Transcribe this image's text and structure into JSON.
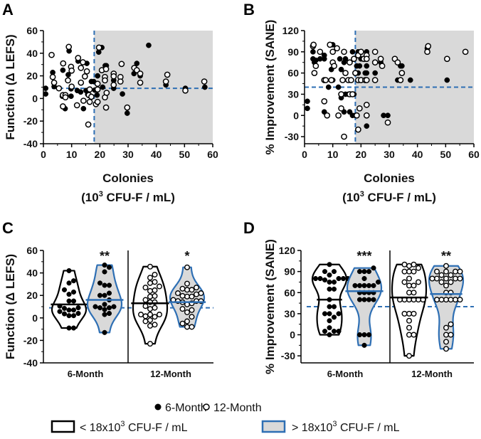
{
  "colors": {
    "shade": "#d9d9d9",
    "blue": "#2e6fb4",
    "black": "#000000"
  },
  "legend": {
    "six_month": "6-Month",
    "twelve_month": "12-Month",
    "below": "< 18x10",
    "above": "> 18x10",
    "sup": "3",
    "unit": " CFU-F / mL"
  },
  "chart_data": [
    {
      "panel": "A",
      "type": "scatter",
      "ylabel": "Function (Δ LEFS)",
      "xlabel": "Colonies",
      "xlabel2": "(10",
      "xlabel_sup": "3",
      "xlabel3": " CFU-F / mL)",
      "xlim": [
        0,
        60
      ],
      "ylim": [
        -40,
        60
      ],
      "xticks": [
        "0",
        "10",
        "20",
        "30",
        "40",
        "50",
        "60"
      ],
      "yticks": [
        "-40",
        "-20",
        "0",
        "20",
        "40",
        "60"
      ],
      "threshold_x": 18,
      "threshold_y": 9,
      "shaded": "x > 18",
      "series": [
        {
          "name": "6-Month",
          "points": [
            [
              0.8,
              9
            ],
            [
              0.8,
              4
            ],
            [
              3.3,
              23
            ],
            [
              3.8,
              10.5
            ],
            [
              6.9,
              25
            ],
            [
              8.8,
              21
            ],
            [
              9.1,
              42
            ],
            [
              9.8,
              2
            ],
            [
              9.8,
              8.5
            ],
            [
              12.3,
              33
            ],
            [
              15.4,
              31
            ],
            [
              12,
              7
            ],
            [
              13.2,
              5.7
            ],
            [
              14.2,
              -9
            ],
            [
              15.1,
              7
            ],
            [
              15.7,
              3.6
            ],
            [
              17,
              15
            ],
            [
              17.8,
              15
            ],
            [
              7.7,
              -9
            ],
            [
              6.7,
              2
            ],
            [
              19.6,
              41
            ],
            [
              20.7,
              45
            ],
            [
              19.2,
              20
            ],
            [
              19,
              3
            ],
            [
              21,
              10
            ],
            [
              21.9,
              29
            ],
            [
              22.3,
              29
            ],
            [
              24.9,
              16
            ],
            [
              24.9,
              9
            ],
            [
              28,
              4
            ],
            [
              29.7,
              -13
            ],
            [
              33.1,
              31
            ],
            [
              32.1,
              22
            ],
            [
              34.3,
              20
            ],
            [
              37.3,
              47
            ],
            [
              43.4,
              12
            ],
            [
              50.3,
              9
            ],
            [
              57.2,
              10
            ],
            [
              18.2,
              7.4
            ]
          ]
        },
        {
          "name": "12-Month",
          "points": [
            [
              2.9,
              38.5
            ],
            [
              3.3,
              19
            ],
            [
              3.8,
              14
            ],
            [
              5.5,
              9
            ],
            [
              7,
              31
            ],
            [
              6.9,
              3
            ],
            [
              6.9,
              -7
            ],
            [
              7.8,
              3
            ],
            [
              7.8,
              1
            ],
            [
              9,
              45.6
            ],
            [
              8.7,
              16
            ],
            [
              9.8,
              28
            ],
            [
              10,
              24.6
            ],
            [
              10,
              10.5
            ],
            [
              12.3,
              35.8
            ],
            [
              11.9,
              -6
            ],
            [
              13.3,
              14
            ],
            [
              13.3,
              27
            ],
            [
              14,
              32
            ],
            [
              14.2,
              -2
            ],
            [
              14.7,
              19.5
            ],
            [
              15.4,
              24
            ],
            [
              15.9,
              -23
            ],
            [
              16.1,
              3
            ],
            [
              16.4,
              8
            ],
            [
              17,
              1.5
            ],
            [
              16.4,
              -3
            ],
            [
              18.6,
              -5
            ],
            [
              19.2,
              13
            ],
            [
              19.2,
              8
            ],
            [
              19.7,
              45
            ],
            [
              19.2,
              -3
            ],
            [
              20.7,
              25
            ],
            [
              21.8,
              19
            ],
            [
              21.8,
              16
            ],
            [
              21.8,
              1
            ],
            [
              22.2,
              26
            ],
            [
              22.4,
              5
            ],
            [
              22.2,
              -8
            ],
            [
              24.9,
              22
            ],
            [
              24.9,
              19.6
            ],
            [
              24.9,
              12
            ],
            [
              27.3,
              19
            ],
            [
              27.3,
              15
            ],
            [
              27.7,
              30.5
            ],
            [
              29.7,
              -8
            ],
            [
              32.2,
              27
            ],
            [
              33.1,
              25
            ],
            [
              34.3,
              22
            ],
            [
              34.3,
              14
            ],
            [
              43.4,
              15
            ],
            [
              43.9,
              21
            ],
            [
              50.3,
              7
            ],
            [
              57,
              15
            ]
          ]
        }
      ]
    },
    {
      "panel": "B",
      "type": "scatter",
      "ylabel": "% Improvement (SANE)",
      "xlabel": "Colonies",
      "xlabel2": "(10",
      "xlabel_sup": "3",
      "xlabel3": " CFU-F / mL)",
      "xlim": [
        0,
        60
      ],
      "ylim": [
        -40,
        120
      ],
      "xticks": [
        "0",
        "10",
        "20",
        "30",
        "40",
        "50",
        "60"
      ],
      "yticks": [
        "-30",
        "0",
        "30",
        "60",
        "90",
        "120"
      ],
      "threshold_x": 18,
      "threshold_y": 40,
      "shaded": "x > 18",
      "series": [
        {
          "name": "6-Month",
          "points": [
            [
              1,
              20
            ],
            [
              1,
              10
            ],
            [
              3,
              90
            ],
            [
              3,
              80
            ],
            [
              3.5,
              75
            ],
            [
              4,
              78
            ],
            [
              5.5,
              80
            ],
            [
              7,
              85
            ],
            [
              7,
              80
            ],
            [
              7,
              5
            ],
            [
              8.5,
              40
            ],
            [
              9.5,
              65
            ],
            [
              10,
              50
            ],
            [
              10,
              100
            ],
            [
              12,
              40
            ],
            [
              12.5,
              80
            ],
            [
              13,
              25
            ],
            [
              13,
              65
            ],
            [
              14,
              75
            ],
            [
              14,
              5
            ],
            [
              14.5,
              80
            ],
            [
              14.5,
              30
            ],
            [
              15.5,
              30
            ],
            [
              16,
              5
            ],
            [
              17,
              0
            ],
            [
              17,
              90
            ],
            [
              17.5,
              30
            ],
            [
              18,
              0
            ],
            [
              18.5,
              70
            ],
            [
              19,
              60
            ],
            [
              19,
              90
            ],
            [
              19.5,
              70
            ],
            [
              20,
              80
            ],
            [
              20,
              90
            ],
            [
              21.5,
              60
            ],
            [
              22,
              60
            ],
            [
              22,
              70
            ],
            [
              22,
              90
            ],
            [
              22,
              -15
            ],
            [
              25,
              60
            ],
            [
              27,
              75
            ],
            [
              28,
              0
            ],
            [
              29.5,
              0
            ],
            [
              33,
              50
            ],
            [
              34,
              50
            ],
            [
              34,
              70
            ],
            [
              34.5,
              70
            ],
            [
              37.5,
              50
            ],
            [
              43.5,
              95
            ],
            [
              50.5,
              50
            ]
          ]
        },
        {
          "name": "12-Month",
          "points": [
            [
              3,
              98
            ],
            [
              3.2,
              100
            ],
            [
              3.5,
              60
            ],
            [
              4,
              70
            ],
            [
              5.5,
              90
            ],
            [
              7,
              50
            ],
            [
              7,
              20
            ],
            [
              7.5,
              50
            ],
            [
              8,
              0
            ],
            [
              9,
              100
            ],
            [
              9.5,
              50
            ],
            [
              10,
              75
            ],
            [
              10,
              90
            ],
            [
              10.5,
              70
            ],
            [
              11.5,
              95
            ],
            [
              12,
              0
            ],
            [
              13,
              10
            ],
            [
              13,
              30
            ],
            [
              13.5,
              50
            ],
            [
              14,
              90
            ],
            [
              14,
              -30
            ],
            [
              14.5,
              60
            ],
            [
              15.5,
              50
            ],
            [
              16,
              30
            ],
            [
              16,
              75
            ],
            [
              16.5,
              50
            ],
            [
              17,
              30
            ],
            [
              17.5,
              80
            ],
            [
              18,
              60
            ],
            [
              18.5,
              0
            ],
            [
              19,
              50
            ],
            [
              19,
              -20
            ],
            [
              19,
              85
            ],
            [
              19.5,
              10
            ],
            [
              20,
              90
            ],
            [
              20,
              50
            ],
            [
              21,
              80
            ],
            [
              21.5,
              50
            ],
            [
              22,
              85
            ],
            [
              22,
              80
            ],
            [
              22,
              50
            ],
            [
              22,
              15
            ],
            [
              22,
              0
            ],
            [
              25,
              75
            ],
            [
              25,
              90
            ],
            [
              25,
              50
            ],
            [
              27,
              80
            ],
            [
              27.5,
              70
            ],
            [
              29.5,
              -10
            ],
            [
              32,
              80
            ],
            [
              33,
              75
            ],
            [
              34.5,
              60
            ],
            [
              34,
              50
            ],
            [
              43.5,
              90
            ],
            [
              43.8,
              98
            ],
            [
              50.5,
              80
            ],
            [
              57,
              90
            ]
          ]
        }
      ]
    },
    {
      "panel": "C",
      "type": "violin",
      "source": "A",
      "ylabel": "Function (Δ LEFS)",
      "ylim": [
        -40,
        60
      ],
      "yticks": [
        "-40",
        "-20",
        "0",
        "20",
        "40",
        "60"
      ],
      "reference_y": 9,
      "threshold_x": 18,
      "categories": [
        "6-Month",
        "12-Month"
      ],
      "groups": [
        {
          "time": "6-Month",
          "side": "below",
          "median": 12,
          "sig": ""
        },
        {
          "time": "6-Month",
          "side": "above",
          "median": 16,
          "sig": "**"
        },
        {
          "time": "12-Month",
          "side": "below",
          "median": 13,
          "sig": ""
        },
        {
          "time": "12-Month",
          "side": "above",
          "median": 14,
          "sig": "*"
        }
      ]
    },
    {
      "panel": "D",
      "type": "violin",
      "source": "B",
      "ylabel": "% Improvement (SANE)",
      "ylim": [
        -40,
        120
      ],
      "yticks": [
        "-30",
        "0",
        "30",
        "60",
        "90",
        "120"
      ],
      "reference_y": 40,
      "threshold_x": 18,
      "categories": [
        "6-Month",
        "12-Month"
      ],
      "groups": [
        {
          "time": "6-Month",
          "side": "below",
          "median": 50,
          "sig": ""
        },
        {
          "time": "6-Month",
          "side": "above",
          "median": 62,
          "sig": "***"
        },
        {
          "time": "12-Month",
          "side": "below",
          "median": 53,
          "sig": ""
        },
        {
          "time": "12-Month",
          "side": "above",
          "median": 58,
          "sig": "**"
        }
      ]
    }
  ]
}
